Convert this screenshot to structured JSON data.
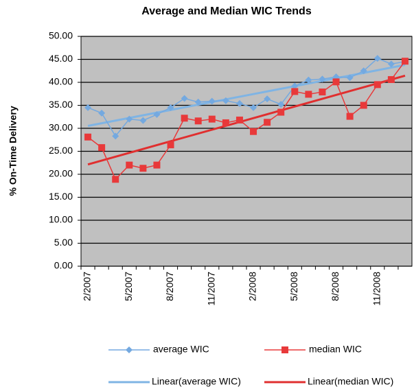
{
  "chart_data": {
    "type": "line",
    "title": "Average and Median WIC Trends",
    "y_label": "% On-Time Delivery",
    "categories": [
      "2/2007",
      null,
      null,
      "5/2007",
      null,
      null,
      "8/2007",
      null,
      null,
      "11/2007",
      null,
      null,
      "2/2008",
      null,
      null,
      "5/2008",
      null,
      null,
      "8/2008",
      null,
      null,
      "11/2008",
      null,
      null
    ],
    "series": [
      {
        "name": "average WIC",
        "color": "#74a9e0",
        "marker": "diamond",
        "values": [
          34.5,
          33.3,
          28.3,
          32.0,
          31.7,
          33.0,
          34.5,
          36.5,
          35.7,
          35.9,
          36.0,
          35.4,
          34.5,
          36.4,
          35.2,
          39.2,
          40.5,
          40.7,
          41.2,
          41.0,
          42.5,
          45.2,
          44.0,
          44.5
        ],
        "trendline": {
          "name": "Linear(average WIC)",
          "color": "#7fb4e4"
        }
      },
      {
        "name": "median WIC",
        "color": "#e8393a",
        "marker": "square",
        "values": [
          28.1,
          25.8,
          18.9,
          22.0,
          21.3,
          22.0,
          26.4,
          32.2,
          31.6,
          32.0,
          31.2,
          31.8,
          29.3,
          31.3,
          33.5,
          38.0,
          37.4,
          37.9,
          40.1,
          32.6,
          35.0,
          39.5,
          40.6,
          44.6
        ],
        "trendline": {
          "name": "Linear(median WIC)",
          "color": "#e02f2f"
        }
      }
    ],
    "ylim": [
      0,
      50
    ],
    "yticks": [
      {
        "value": 0,
        "label": "0.00"
      },
      {
        "value": 5,
        "label": "5.00"
      },
      {
        "value": 10,
        "label": "10.00"
      },
      {
        "value": 15,
        "label": "15.00"
      },
      {
        "value": 20,
        "label": "20.00"
      },
      {
        "value": 25,
        "label": "25.00"
      },
      {
        "value": 30,
        "label": "30.00"
      },
      {
        "value": 35,
        "label": "35.00"
      },
      {
        "value": 40,
        "label": "40.00"
      },
      {
        "value": 45,
        "label": "45.00"
      },
      {
        "value": 50,
        "label": "50.00"
      }
    ],
    "grid": true
  }
}
